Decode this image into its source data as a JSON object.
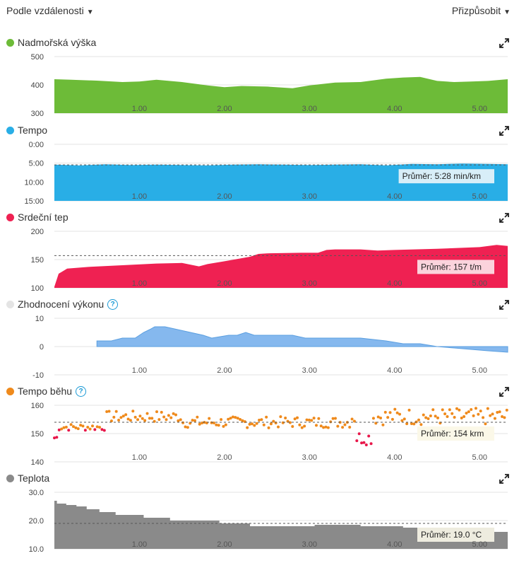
{
  "header": {
    "sort_label": "Podle vzdálenosti",
    "customize_label": "Přizpůsobit"
  },
  "chart_data": [
    {
      "type": "area",
      "title": "Nadmořská výška",
      "color": "#6dbb38",
      "y_ticks": [
        "500",
        "400",
        "300"
      ],
      "ylim": [
        300,
        500
      ],
      "y_reversed": false,
      "x_ticks": [
        "1.00",
        "2.00",
        "3.00",
        "4.00",
        "5.00"
      ],
      "xlim": [
        0,
        5.33
      ],
      "x": [
        0,
        0.2,
        0.5,
        0.8,
        1.0,
        1.2,
        1.5,
        1.8,
        2.0,
        2.2,
        2.5,
        2.8,
        3.0,
        3.3,
        3.6,
        3.9,
        4.1,
        4.3,
        4.5,
        4.7,
        4.9,
        5.1,
        5.33
      ],
      "values": [
        420,
        418,
        415,
        410,
        412,
        418,
        410,
        398,
        392,
        396,
        394,
        388,
        398,
        408,
        410,
        422,
        426,
        428,
        414,
        410,
        412,
        414,
        420
      ]
    },
    {
      "type": "area",
      "title": "Tempo",
      "color": "#29aee6",
      "y_ticks": [
        "0:00",
        "5:00",
        "10:00",
        "15:00"
      ],
      "ylim": [
        0,
        15
      ],
      "y_reversed": true,
      "x_ticks": [
        "1.00",
        "2.00",
        "3.00",
        "4.00",
        "5.00"
      ],
      "xlim": [
        0,
        5.33
      ],
      "x": [
        0,
        0.3,
        0.6,
        0.9,
        1.2,
        1.5,
        1.8,
        2.1,
        2.4,
        2.7,
        3.0,
        3.3,
        3.6,
        3.9,
        4.2,
        4.5,
        4.8,
        5.1,
        5.33
      ],
      "values": [
        5.4,
        5.6,
        5.3,
        5.5,
        5.4,
        5.5,
        5.6,
        5.4,
        5.3,
        5.4,
        5.5,
        5.4,
        5.3,
        5.6,
        5.2,
        5.3,
        5.1,
        5.2,
        5.3
      ],
      "average": 5.47,
      "average_label": "Průměr: 5:28 min/km"
    },
    {
      "type": "area",
      "title": "Srdeční tep",
      "color": "#ef2152",
      "y_ticks": [
        "200",
        "150",
        "100"
      ],
      "ylim": [
        100,
        200
      ],
      "y_reversed": false,
      "x_ticks": [
        "1.00",
        "2.00",
        "3.00",
        "4.00",
        "5.00"
      ],
      "xlim": [
        0,
        5.33
      ],
      "x": [
        0,
        0.05,
        0.15,
        0.4,
        0.8,
        1.2,
        1.5,
        1.7,
        1.8,
        2.0,
        2.3,
        2.4,
        2.5,
        2.9,
        3.1,
        3.2,
        3.3,
        3.6,
        3.8,
        4.0,
        4.5,
        5.0,
        5.2,
        5.33
      ],
      "values": [
        102,
        125,
        134,
        137,
        140,
        143,
        144,
        138,
        142,
        147,
        155,
        160,
        161,
        162,
        162,
        167,
        168,
        168,
        166,
        167,
        169,
        172,
        176,
        174
      ],
      "average": 157,
      "average_label": "Průměr: 157 t/m"
    },
    {
      "type": "area",
      "title": "Zhodnocení výkonu",
      "color": "#85b8ee",
      "y_ticks": [
        "10",
        "0",
        "-10"
      ],
      "ylim": [
        -10,
        10
      ],
      "y_reversed": false,
      "x_ticks": [
        "1.00",
        "2.00",
        "3.00",
        "4.00",
        "5.00"
      ],
      "xlim": [
        0,
        5.33
      ],
      "x": [
        0.5,
        0.67,
        0.8,
        0.95,
        1.05,
        1.12,
        1.18,
        1.3,
        1.45,
        1.6,
        1.75,
        1.85,
        2.05,
        2.15,
        2.25,
        2.35,
        2.5,
        2.8,
        2.95,
        3.1,
        3.3,
        3.6,
        3.9,
        4.1,
        4.2,
        4.3,
        4.5,
        4.7,
        4.9,
        5.1,
        5.33
      ],
      "values": [
        2,
        2,
        3,
        3,
        5,
        6,
        7,
        7,
        6,
        5,
        4,
        3,
        4,
        4,
        5,
        4,
        4,
        4,
        3,
        3,
        3,
        3,
        2,
        1,
        1,
        1,
        0,
        -0.5,
        -1,
        -1.5,
        -2
      ],
      "help": "?"
    },
    {
      "type": "scatter",
      "title": "Tempo běhu",
      "color": "#ef8a1c",
      "low_color": "#e8174a",
      "y_ticks": [
        "160",
        "150",
        "140"
      ],
      "ylim": [
        140,
        160
      ],
      "y_reversed": false,
      "x_ticks": [
        "1.00",
        "2.00",
        "3.00",
        "4.00",
        "5.00"
      ],
      "xlim": [
        0,
        5.33
      ],
      "average": 154,
      "average_label": "Průměr: 154 krm",
      "help": "?"
    },
    {
      "type": "area",
      "title": "Teplota",
      "color": "#8a8a8a",
      "y_ticks": [
        "30.0",
        "20.0",
        "10.0"
      ],
      "ylim": [
        10,
        30
      ],
      "y_reversed": false,
      "x_ticks": [
        "1.00",
        "2.00",
        "3.00",
        "4.00",
        "5.00"
      ],
      "xlim": [
        0,
        5.33
      ],
      "step_x": [
        0,
        0.03,
        0.14,
        0.26,
        0.38,
        0.53,
        0.72,
        1.05,
        1.36,
        1.94,
        2.3,
        3.06,
        3.6,
        4.1,
        4.34,
        4.8,
        5.0,
        5.33
      ],
      "step_y": [
        27,
        26,
        25.5,
        25,
        24,
        23,
        22,
        21,
        20,
        19,
        18,
        18.5,
        18,
        17.5,
        17,
        16.5,
        16,
        16
      ],
      "average": 19.0,
      "average_label": "Průměr: 19.0 °C"
    }
  ]
}
